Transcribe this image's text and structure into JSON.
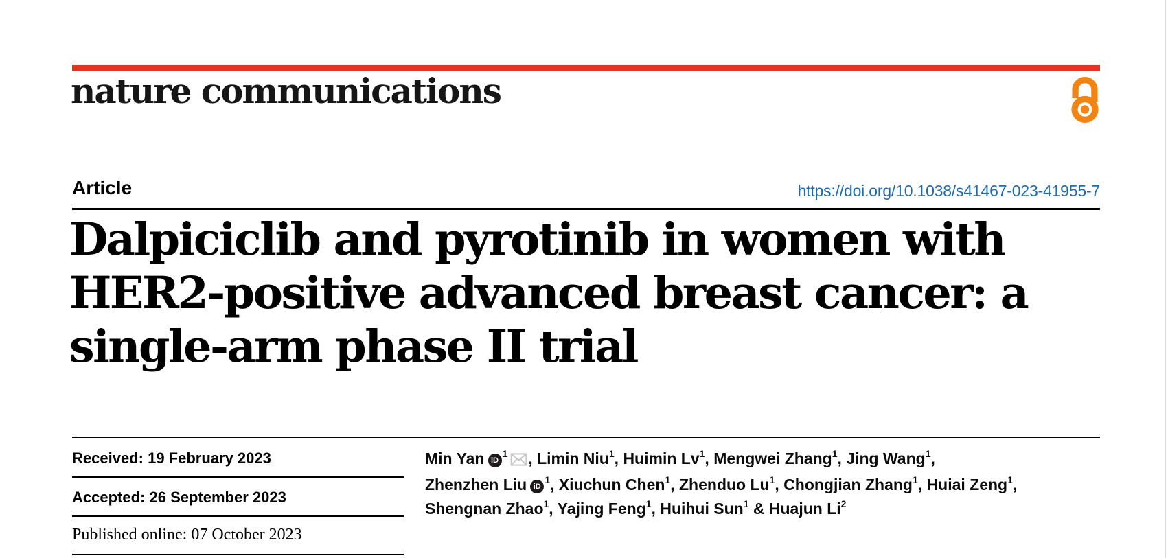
{
  "journal": {
    "logo": "nature communications"
  },
  "article": {
    "label": "Article",
    "doi": "https://doi.org/10.1038/s41467-023-41955-7",
    "title_lines": [
      "Dalpiciclib and pyrotinib in women with",
      "HER2-positive advanced breast cancer: a",
      "single-arm phase II trial"
    ]
  },
  "dates": {
    "received": {
      "label": "Received:",
      "value": "19 February 2023"
    },
    "accepted": {
      "label": "Accepted:",
      "value": "26 September 2023"
    },
    "published": {
      "label": "Published online:",
      "value": "07 October 2023"
    }
  },
  "authors": {
    "orcid_badge_text": "iD",
    "lines": [
      {
        "segments": [
          {
            "name": "Min Yan",
            "orcid": true,
            "sup": "1",
            "envelope": true,
            "sep": ", "
          },
          {
            "name": "Limin Niu",
            "sup": "1",
            "sep": ", "
          },
          {
            "name": "Huimin Lv",
            "sup": "1",
            "sep": ", "
          },
          {
            "name": "Mengwei Zhang",
            "sup": "1",
            "sep": ", "
          },
          {
            "name": "Jing Wang",
            "sup": "1",
            "sep": ","
          }
        ]
      },
      {
        "segments": [
          {
            "name": "Zhenzhen Liu",
            "orcid": true,
            "sup": "1",
            "sep": ", "
          },
          {
            "name": "Xiuchun Chen",
            "sup": "1",
            "sep": ", "
          },
          {
            "name": "Zhenduo Lu",
            "sup": "1",
            "sep": ", "
          },
          {
            "name": "Chongjian Zhang",
            "sup": "1",
            "sep": ", "
          },
          {
            "name": "Huiai Zeng",
            "sup": "1",
            "sep": ","
          }
        ]
      },
      {
        "segments": [
          {
            "name": "Shengnan Zhao",
            "sup": "1",
            "sep": ", "
          },
          {
            "name": "Yajing Feng",
            "sup": "1",
            "sep": ", "
          },
          {
            "name": "Huihui Sun",
            "sup": "1",
            "sep": " & "
          },
          {
            "name": "Huajun Li",
            "sup": "2",
            "sep": ""
          }
        ]
      }
    ]
  },
  "colors": {
    "accent_red": "#e63323",
    "link_blue": "#1b6cb3",
    "open_access_orange": "#f08414",
    "text_black": "#111111",
    "envelope_grey": "#c6c6c6"
  }
}
